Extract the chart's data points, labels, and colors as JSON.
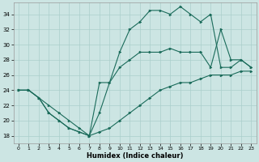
{
  "xlabel": "Humidex (Indice chaleur)",
  "ylabel": "",
  "background_color": "#cce5e3",
  "grid_color": "#aacfcc",
  "line_color": "#1a6b5a",
  "xlim": [
    -0.5,
    23.5
  ],
  "ylim": [
    17,
    35.5
  ],
  "yticks": [
    18,
    20,
    22,
    24,
    26,
    28,
    30,
    32,
    34
  ],
  "xticks": [
    0,
    1,
    2,
    3,
    4,
    5,
    6,
    7,
    8,
    9,
    10,
    11,
    12,
    13,
    14,
    15,
    16,
    17,
    18,
    19,
    20,
    21,
    22,
    23
  ],
  "series": [
    {
      "x": [
        0,
        1,
        2,
        3,
        4,
        5,
        6,
        7,
        8,
        9,
        10,
        11,
        12,
        13,
        14,
        15,
        16,
        17,
        18,
        19,
        20,
        21,
        22,
        23
      ],
      "y": [
        24,
        24,
        23,
        21,
        20,
        19,
        18.5,
        18,
        18.5,
        19,
        20,
        21,
        22,
        23,
        24,
        24.5,
        25,
        25,
        25.5,
        26,
        26,
        26,
        26.5,
        26.5
      ]
    },
    {
      "x": [
        0,
        1,
        2,
        3,
        4,
        5,
        6,
        7,
        8,
        9,
        10,
        11,
        12,
        13,
        14,
        15,
        16,
        17,
        18,
        19,
        20,
        21,
        22,
        23
      ],
      "y": [
        24,
        24,
        23,
        22,
        21,
        20,
        19,
        18,
        21,
        25,
        27,
        28,
        29,
        29,
        29,
        29.5,
        29,
        29,
        29,
        27,
        32,
        28,
        28,
        27
      ]
    },
    {
      "x": [
        0,
        1,
        2,
        3,
        4,
        5,
        6,
        7,
        8,
        9,
        10,
        11,
        12,
        13,
        14,
        15,
        16,
        17,
        18,
        19,
        20,
        21,
        22,
        23
      ],
      "y": [
        24,
        24,
        23,
        21,
        20,
        19,
        18.5,
        18,
        25,
        25,
        29,
        32,
        33,
        34.5,
        34.5,
        34,
        35,
        34,
        33,
        34,
        27,
        27,
        28,
        27
      ]
    }
  ]
}
